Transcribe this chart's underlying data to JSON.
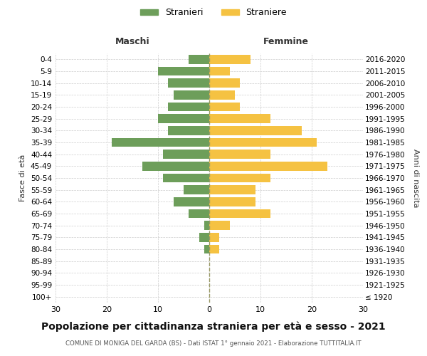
{
  "age_groups": [
    "100+",
    "95-99",
    "90-94",
    "85-89",
    "80-84",
    "75-79",
    "70-74",
    "65-69",
    "60-64",
    "55-59",
    "50-54",
    "45-49",
    "40-44",
    "35-39",
    "30-34",
    "25-29",
    "20-24",
    "15-19",
    "10-14",
    "5-9",
    "0-4"
  ],
  "birth_years": [
    "≤ 1920",
    "1921-1925",
    "1926-1930",
    "1931-1935",
    "1936-1940",
    "1941-1945",
    "1946-1950",
    "1951-1955",
    "1956-1960",
    "1961-1965",
    "1966-1970",
    "1971-1975",
    "1976-1980",
    "1981-1985",
    "1986-1990",
    "1991-1995",
    "1996-2000",
    "2001-2005",
    "2006-2010",
    "2011-2015",
    "2016-2020"
  ],
  "maschi": [
    0,
    0,
    0,
    0,
    1,
    2,
    1,
    4,
    7,
    5,
    9,
    13,
    9,
    19,
    8,
    10,
    8,
    7,
    8,
    10,
    4
  ],
  "femmine": [
    0,
    0,
    0,
    0,
    2,
    2,
    4,
    12,
    9,
    9,
    12,
    23,
    12,
    21,
    18,
    12,
    6,
    5,
    6,
    4,
    8
  ],
  "color_maschi": "#6d9e5a",
  "color_femmine": "#f5c242",
  "title": "Popolazione per cittadinanza straniera per età e sesso - 2021",
  "subtitle": "COMUNE DI MONIGA DEL GARDA (BS) - Dati ISTAT 1° gennaio 2021 - Elaborazione TUTTITALIA.IT",
  "xlabel_left": "Maschi",
  "xlabel_right": "Femmine",
  "ylabel_left": "Fasce di età",
  "ylabel_right": "Anni di nascita",
  "legend_maschi": "Stranieri",
  "legend_femmine": "Straniere",
  "xlim": 30,
  "background_color": "#ffffff",
  "grid_color": "#cccccc"
}
